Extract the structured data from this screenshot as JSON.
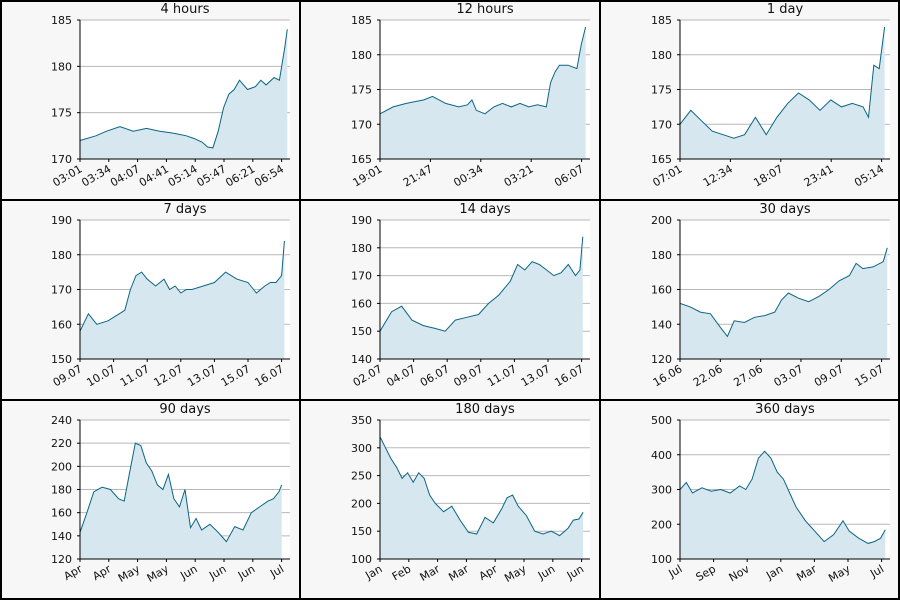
{
  "colors": {
    "line": "#0b6584",
    "fill": "#d6e7ef",
    "grid": "#b8b8b8",
    "panel_bg": "#f7f7f7",
    "plot_bg": "#ffffff"
  },
  "chart_data": [
    {
      "type": "area",
      "title": "4 hours",
      "xticks": [
        "03:01",
        "03:34",
        "04:07",
        "04:41",
        "05:14",
        "05:47",
        "06:21",
        "06:54"
      ],
      "yticks": [
        170,
        175,
        180,
        185
      ],
      "ylim": [
        170,
        185
      ],
      "xlim": [
        0,
        7.9
      ],
      "grid": true,
      "x": [
        0,
        0.6,
        1,
        1.5,
        2,
        2.5,
        3,
        3.5,
        4,
        4.3,
        4.6,
        4.8,
        5,
        5.2,
        5.4,
        5.6,
        5.8,
        6,
        6.3,
        6.6,
        6.8,
        7,
        7.3,
        7.5,
        7.7,
        7.8
      ],
      "y": [
        172,
        172.5,
        173,
        173.5,
        173,
        173.3,
        173,
        172.8,
        172.5,
        172.2,
        171.8,
        171.3,
        171.2,
        173,
        175.5,
        177,
        177.5,
        178.5,
        177.5,
        177.8,
        178.5,
        178,
        178.8,
        178.5,
        182,
        184
      ]
    },
    {
      "type": "area",
      "title": "12 hours",
      "xticks": [
        "19:01",
        "21:47",
        "00:34",
        "03:21",
        "06:07"
      ],
      "yticks": [
        165,
        170,
        175,
        180,
        185
      ],
      "ylim": [
        165,
        185
      ],
      "xlim": [
        0,
        4.8
      ],
      "grid": true,
      "x": [
        0,
        0.3,
        0.6,
        1,
        1.2,
        1.5,
        1.8,
        2,
        2.1,
        2.2,
        2.4,
        2.6,
        2.8,
        3,
        3.2,
        3.4,
        3.6,
        3.8,
        3.9,
        4,
        4.1,
        4.3,
        4.5,
        4.6,
        4.7
      ],
      "y": [
        171.5,
        172.5,
        173,
        173.5,
        174,
        173,
        172.5,
        172.8,
        173.5,
        172,
        171.5,
        172.5,
        173,
        172.5,
        173,
        172.5,
        172.8,
        172.5,
        176,
        177.5,
        178.5,
        178.5,
        178,
        181.5,
        184
      ]
    },
    {
      "type": "area",
      "title": "1 day",
      "xticks": [
        "07:01",
        "12:34",
        "18:07",
        "23:41",
        "05:14"
      ],
      "yticks": [
        165,
        170,
        175,
        180,
        185
      ],
      "ylim": [
        165,
        185
      ],
      "xlim": [
        0,
        3.9
      ],
      "grid": true,
      "x": [
        0,
        0.2,
        0.4,
        0.6,
        0.8,
        1,
        1.2,
        1.4,
        1.6,
        1.8,
        2,
        2.2,
        2.4,
        2.6,
        2.8,
        3,
        3.2,
        3.4,
        3.5,
        3.6,
        3.7,
        3.8
      ],
      "y": [
        170,
        172,
        170.5,
        169,
        168.5,
        168,
        168.5,
        171,
        168.5,
        171,
        173,
        174.5,
        173.5,
        172,
        173.5,
        172.5,
        173,
        172.5,
        171,
        178.5,
        178,
        184
      ]
    },
    {
      "type": "area",
      "title": "7 days",
      "xticks": [
        "09.07",
        "10.07",
        "11.07",
        "12.07",
        "13.07",
        "15.07",
        "16.07"
      ],
      "yticks": [
        150,
        160,
        170,
        180,
        190
      ],
      "ylim": [
        150,
        190
      ],
      "xlim": [
        0,
        7.5
      ],
      "grid": true,
      "x": [
        0,
        0.3,
        0.6,
        1,
        1.4,
        1.6,
        1.8,
        2,
        2.2,
        2.4,
        2.7,
        3,
        3.2,
        3.4,
        3.6,
        3.8,
        4,
        4.4,
        4.8,
        5.2,
        5.6,
        6,
        6.3,
        6.6,
        6.8,
        7,
        7.2,
        7.3
      ],
      "y": [
        158,
        163,
        160,
        161,
        163,
        164,
        170,
        174,
        175,
        173,
        171,
        173,
        170,
        171,
        169,
        170,
        170,
        171,
        172,
        175,
        173,
        172,
        169,
        171,
        172,
        172,
        174,
        184
      ]
    },
    {
      "type": "area",
      "title": "14 days",
      "xticks": [
        "02.07",
        "04.07",
        "06.07",
        "09.07",
        "11.07",
        "13.07",
        "16.07"
      ],
      "yticks": [
        140,
        150,
        160,
        170,
        180,
        190
      ],
      "ylim": [
        140,
        190
      ],
      "xlim": [
        0,
        14.5
      ],
      "grid": true,
      "x": [
        0,
        0.8,
        1.5,
        2.2,
        3,
        3.8,
        4.5,
        5.2,
        6,
        6.8,
        7.5,
        8.2,
        9,
        9.5,
        10,
        10.5,
        11,
        11.5,
        12,
        12.5,
        13,
        13.5,
        13.8,
        14
      ],
      "y": [
        150,
        157,
        159,
        154,
        152,
        151,
        150,
        154,
        155,
        156,
        160,
        163,
        168,
        174,
        172,
        175,
        174,
        172,
        170,
        171,
        174,
        170,
        172,
        184
      ]
    },
    {
      "type": "area",
      "title": "30 days",
      "xticks": [
        "16.06",
        "22.06",
        "27.06",
        "03.07",
        "09.07",
        "15.07"
      ],
      "yticks": [
        120,
        140,
        160,
        180,
        200
      ],
      "ylim": [
        120,
        200
      ],
      "xlim": [
        0,
        31
      ],
      "grid": true,
      "x": [
        0,
        1.5,
        3,
        4.5,
        6,
        7,
        8,
        9.5,
        11,
        12.5,
        14,
        15,
        16,
        17.5,
        19,
        20.5,
        22,
        23.5,
        25,
        26,
        27,
        28.5,
        30,
        30.6
      ],
      "y": [
        152,
        150,
        147,
        146,
        138,
        133,
        142,
        141,
        144,
        145,
        147,
        154,
        158,
        155,
        153,
        156,
        160,
        165,
        168,
        175,
        172,
        173,
        176,
        184
      ]
    },
    {
      "type": "area",
      "title": "90 days",
      "xticks": [
        "Apr",
        "Apr",
        "May",
        "May",
        "Jun",
        "Jun",
        "Jun",
        "Jul"
      ],
      "yticks": [
        120,
        140,
        160,
        180,
        200,
        220,
        240
      ],
      "ylim": [
        120,
        240
      ],
      "xlim": [
        0,
        7.6
      ],
      "grid": true,
      "x": [
        0,
        0.25,
        0.5,
        0.8,
        1.1,
        1.4,
        1.6,
        1.8,
        2,
        2.2,
        2.4,
        2.6,
        2.8,
        3,
        3.2,
        3.4,
        3.6,
        3.8,
        4,
        4.2,
        4.4,
        4.7,
        5,
        5.3,
        5.6,
        5.9,
        6.2,
        6.5,
        6.8,
        7,
        7.2,
        7.3
      ],
      "y": [
        143,
        160,
        178,
        182,
        180,
        172,
        170,
        195,
        220,
        218,
        203,
        196,
        184,
        180,
        193,
        172,
        165,
        180,
        147,
        155,
        145,
        150,
        143,
        135,
        148,
        145,
        160,
        165,
        170,
        172,
        178,
        184
      ]
    },
    {
      "type": "area",
      "title": "180 days",
      "xticks": [
        "Jan",
        "Feb",
        "Mar",
        "Mar",
        "Apr",
        "May",
        "Jun",
        "Jun"
      ],
      "yticks": [
        100,
        150,
        200,
        250,
        300,
        350
      ],
      "ylim": [
        100,
        350
      ],
      "xlim": [
        0,
        7.6
      ],
      "grid": true,
      "x": [
        0,
        0.2,
        0.4,
        0.6,
        0.8,
        1,
        1.2,
        1.4,
        1.6,
        1.8,
        2,
        2.3,
        2.6,
        2.9,
        3.2,
        3.5,
        3.8,
        4.1,
        4.4,
        4.6,
        4.8,
        5,
        5.3,
        5.6,
        5.9,
        6.2,
        6.5,
        6.8,
        7,
        7.2,
        7.35
      ],
      "y": [
        320,
        300,
        280,
        265,
        245,
        255,
        238,
        255,
        245,
        215,
        200,
        185,
        195,
        170,
        148,
        145,
        175,
        165,
        190,
        210,
        215,
        195,
        178,
        150,
        145,
        150,
        142,
        155,
        170,
        172,
        184
      ]
    },
    {
      "type": "area",
      "title": "360 days",
      "xticks": [
        "Jul",
        "Sep",
        "Nov",
        "Jan",
        "Mar",
        "May",
        "Jul"
      ],
      "yticks": [
        100,
        200,
        300,
        400,
        500
      ],
      "ylim": [
        100,
        500
      ],
      "xlim": [
        0,
        6.7
      ],
      "grid": true,
      "x": [
        0,
        0.2,
        0.4,
        0.7,
        1,
        1.3,
        1.6,
        1.9,
        2.1,
        2.3,
        2.5,
        2.7,
        2.9,
        3.1,
        3.3,
        3.5,
        3.7,
        4,
        4.3,
        4.6,
        4.9,
        5.2,
        5.4,
        5.7,
        6,
        6.2,
        6.4,
        6.55
      ],
      "y": [
        300,
        320,
        290,
        305,
        295,
        300,
        290,
        310,
        300,
        330,
        390,
        410,
        390,
        350,
        330,
        290,
        250,
        210,
        180,
        150,
        170,
        210,
        180,
        160,
        145,
        150,
        160,
        184
      ]
    }
  ]
}
